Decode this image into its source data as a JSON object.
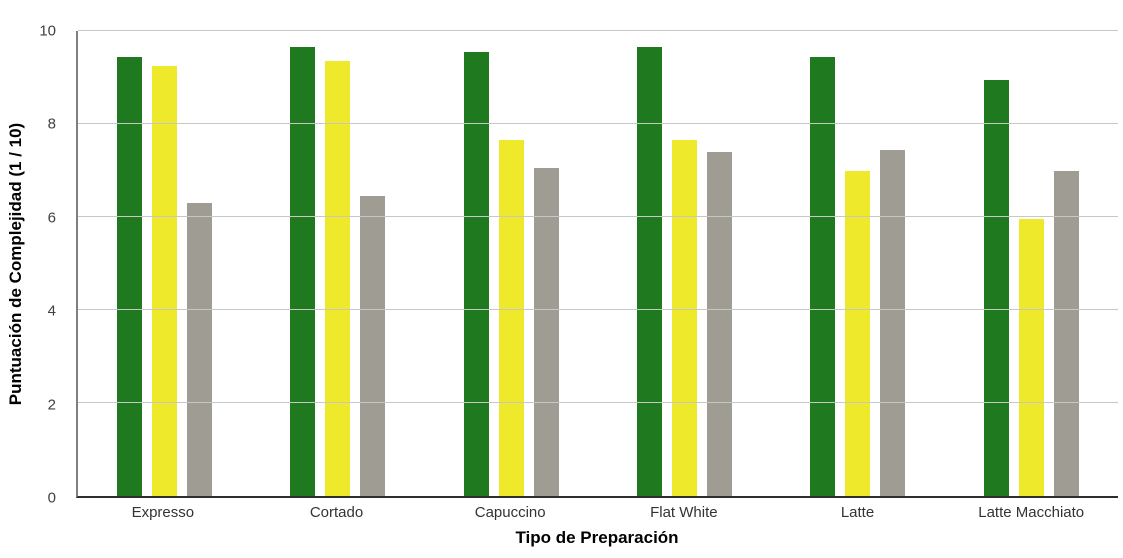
{
  "chart_data": {
    "type": "bar",
    "title": "",
    "xlabel": "Tipo de Preparación",
    "ylabel": "Puntuación de Complejidad (1 / 10)",
    "ylim": [
      0,
      10
    ],
    "yticks": [
      0,
      2,
      4,
      6,
      8,
      10
    ],
    "grid": true,
    "legend_position": "none",
    "background_color": "#ffffff",
    "categories": [
      "Expresso",
      "Cortado",
      "Capuccino",
      "Flat White",
      "Latte",
      "Latte Macchiato"
    ],
    "series": [
      {
        "name": "green",
        "color": "#1f7a1f",
        "values": [
          9.45,
          9.65,
          9.55,
          9.65,
          9.45,
          8.95
        ]
      },
      {
        "name": "yellow",
        "color": "#efe92c",
        "values": [
          9.25,
          9.35,
          7.65,
          7.65,
          7.0,
          5.95
        ]
      },
      {
        "name": "gray",
        "color": "#9e9c93",
        "values": [
          6.3,
          6.45,
          7.05,
          7.4,
          7.45,
          7.0
        ]
      }
    ]
  }
}
